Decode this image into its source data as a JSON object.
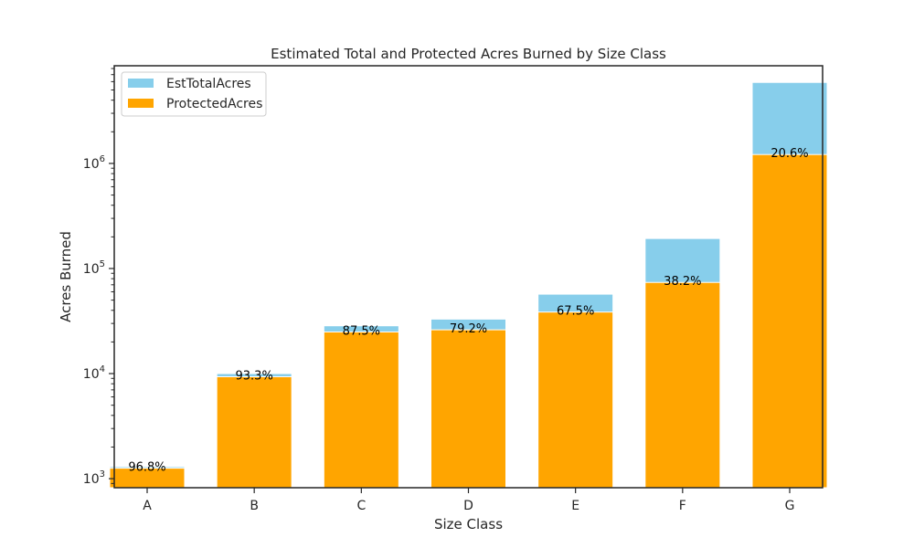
{
  "chart_data": {
    "type": "bar",
    "title": "Estimated Total and Protected Acres Burned by Size Class",
    "xlabel": "Size Class",
    "ylabel": "Acres Burned",
    "yscale": "log",
    "ylim": [
      820,
      8500000
    ],
    "categories": [
      "A",
      "B",
      "C",
      "D",
      "E",
      "F",
      "G"
    ],
    "series": [
      {
        "name": "EstTotalAcres",
        "color": "#87ceeb",
        "values": [
          1300,
          10000,
          28500,
          33000,
          57000,
          193000,
          5900000
        ]
      },
      {
        "name": "ProtectedAcres",
        "color": "#ffa500",
        "values": [
          1258,
          9330,
          24900,
          26100,
          38500,
          73700,
          1215000
        ]
      }
    ],
    "data_labels": [
      "96.8%",
      "93.3%",
      "87.5%",
      "79.2%",
      "67.5%",
      "38.2%",
      "20.6%"
    ],
    "legend_position": "upper-left",
    "grid": false,
    "yticks": [
      {
        "value": 1000,
        "base": "10",
        "exp": "3"
      },
      {
        "value": 10000,
        "base": "10",
        "exp": "4"
      },
      {
        "value": 100000,
        "base": "10",
        "exp": "5"
      },
      {
        "value": 1000000,
        "base": "10",
        "exp": "6"
      }
    ]
  }
}
